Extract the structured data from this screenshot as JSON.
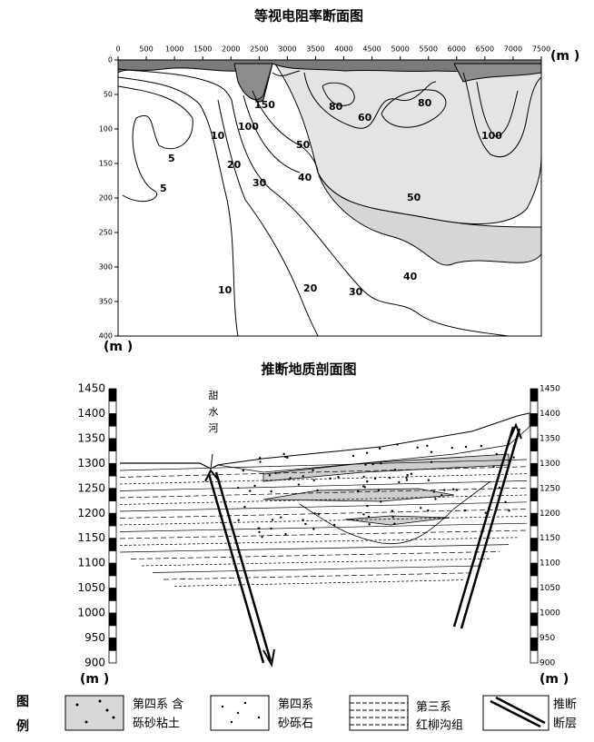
{
  "contour": {
    "title": "等视电阻率断面图",
    "x_ticks": [
      "0",
      "500",
      "1000",
      "1500",
      "2000",
      "2500",
      "3000",
      "3500",
      "4000",
      "4500",
      "5000",
      "5500",
      "6000",
      "6500",
      "7000",
      "7500"
    ],
    "y_ticks": [
      "0",
      "50",
      "100",
      "150",
      "200",
      "250",
      "300",
      "350",
      "400"
    ],
    "x_unit": "(m )",
    "y_unit": "(m )",
    "labels": [
      "10",
      "5",
      "5",
      "20",
      "30",
      "40",
      "50",
      "100",
      "150",
      "80",
      "60",
      "80",
      "100",
      "50",
      "40",
      "10",
      "20",
      "30"
    ]
  },
  "section": {
    "title": "推断地质剖面图",
    "y_ticks_left": [
      "1450",
      "1400",
      "1350",
      "1300",
      "1250",
      "1200",
      "1150",
      "1100",
      "1050",
      "1000",
      "950",
      "900"
    ],
    "y_ticks_right": [
      "1450",
      "1400",
      "1350",
      "1300",
      "1250",
      "1200",
      "1150",
      "1100",
      "1050",
      "1000",
      "950",
      "900"
    ],
    "river": [
      "甜",
      "水",
      "河"
    ],
    "unit_left": "(m )",
    "unit_right": "(m )"
  },
  "legend": {
    "heading": [
      "图",
      "例"
    ],
    "items": [
      [
        "第四系 含",
        "砾砂粘土"
      ],
      [
        "第四系",
        "砂砾石"
      ],
      [
        "第三系",
        "红柳沟组"
      ],
      [
        "推断",
        "断层"
      ]
    ]
  }
}
